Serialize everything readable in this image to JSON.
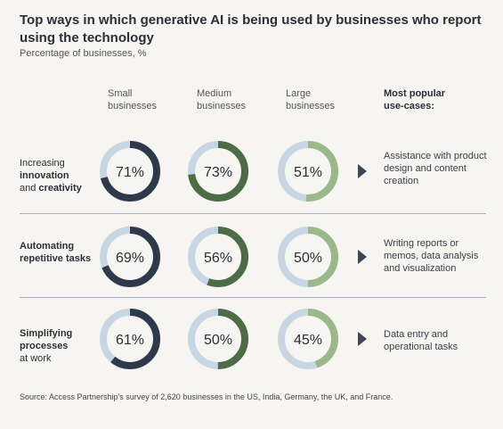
{
  "title": "Top ways in which generative AI is being used by businesses who report using the technology",
  "subtitle": "Percentage of businesses, %",
  "source": "Source: Access Partnership's survey of 2,620 businesses in the US, India, Germany, the UK, and France.",
  "columns": [
    {
      "line1": "Small",
      "line2": "businesses"
    },
    {
      "line1": "Medium",
      "line2": "businesses"
    },
    {
      "line1": "Large",
      "line2": "businesses"
    },
    {
      "line1": "Most popular",
      "line2": "use-cases:"
    }
  ],
  "rows": [
    {
      "label_parts": [
        {
          "text": "Increasing",
          "bold": false,
          "br": true
        },
        {
          "text": "innovation",
          "bold": true,
          "br": true
        },
        {
          "text": "and ",
          "bold": false,
          "br": false
        },
        {
          "text": "creativity",
          "bold": true,
          "br": false
        }
      ],
      "use_case": [
        "Assistance with product",
        "design and content",
        "creation"
      ]
    },
    {
      "label_parts": [
        {
          "text": "Automating",
          "bold": true,
          "br": true
        },
        {
          "text": "repetitive tasks",
          "bold": true,
          "br": false
        }
      ],
      "use_case": [
        "Writing reports or",
        "memos, data analysis",
        "and visualization"
      ]
    },
    {
      "label_parts": [
        {
          "text": "Simplifying",
          "bold": true,
          "br": true
        },
        {
          "text": "processes",
          "bold": true,
          "br": true
        },
        {
          "text": "at work",
          "bold": false,
          "br": false
        }
      ],
      "use_case": [
        "Data entry and",
        "operational tasks"
      ]
    }
  ],
  "colors": {
    "small": "#2e3a4b",
    "medium": "#4d6b45",
    "large": "#9bb88a",
    "track": "#c8d6e3",
    "arrow": "#3c4656",
    "divider": "#9fb3c6"
  },
  "chart_data": {
    "type": "donut",
    "title": "Top ways in which generative AI is being used by businesses who report using the technology",
    "subtitle": "Percentage of businesses, %",
    "categories": [
      "Increasing innovation and creativity",
      "Automating repetitive tasks",
      "Simplifying processes at work"
    ],
    "series": [
      {
        "name": "Small businesses",
        "values": [
          71,
          69,
          61
        ]
      },
      {
        "name": "Medium businesses",
        "values": [
          73,
          56,
          50
        ]
      },
      {
        "name": "Large businesses",
        "values": [
          51,
          50,
          45
        ]
      }
    ],
    "unit": "%",
    "ylim": [
      0,
      100
    ]
  }
}
